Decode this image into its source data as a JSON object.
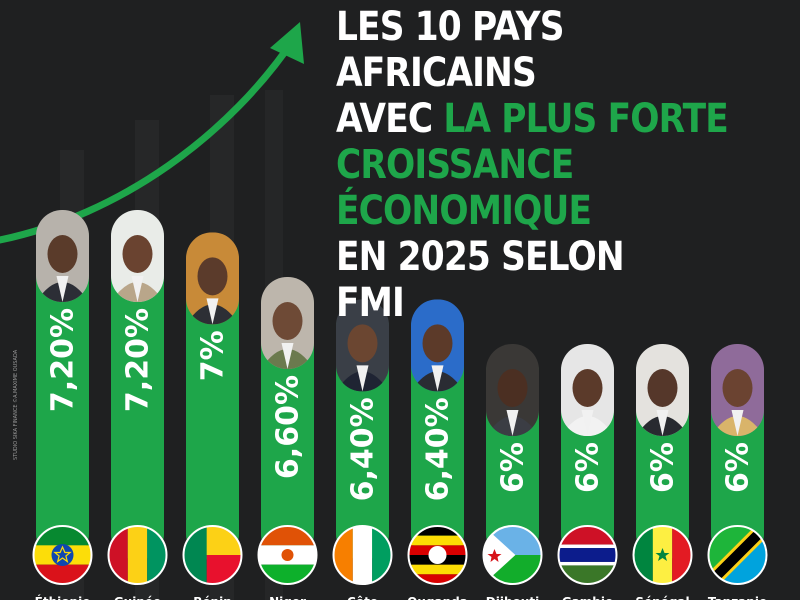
{
  "title": {
    "line1": "LES 10 PAYS AFRICAINS",
    "line2_white": "AVEC ",
    "line2_green": "LA PLUS FORTE",
    "line3": "CROISSANCE",
    "line4": "ÉCONOMIQUE",
    "line5": "EN 2025 SELON",
    "line6": "FMI"
  },
  "credit": "STUDIO SIKA FINANCE ©A.MAXIME OUSADA",
  "colors": {
    "background": "#1f2021",
    "accent": "#1ea64a",
    "bar": "#1ea64a",
    "text": "#ffffff"
  },
  "chart_data": {
    "type": "bar",
    "title": "LES 10 PAYS AFRICAINS AVEC LA PLUS FORTE CROISSANCE ÉCONOMIQUE EN 2025 SELON FMI",
    "categories": [
      "Éthiopie",
      "Guinée",
      "Bénin",
      "Niger",
      "Côte d'Ivoire",
      "Ouganda",
      "Djibouti",
      "Gambie",
      "Sénégal",
      "Tanzanie"
    ],
    "category_labels_visible": [
      "Éthiopie",
      "Guinée",
      "Bénin",
      "Niger",
      "Côte",
      "Ouganda",
      "Djibouti",
      "Gambie",
      "Sénégal",
      "Tanzanie"
    ],
    "values": [
      7.2,
      7.2,
      7.0,
      6.6,
      6.4,
      6.4,
      6.0,
      6.0,
      6.0,
      6.0
    ],
    "value_labels": [
      "7,20%",
      "7,20%",
      "7%",
      "6,60%",
      "6,40%",
      "6,40%",
      "6%",
      "6%",
      "6%",
      "6%"
    ],
    "flag_icons": [
      "ethiopia-flag-icon",
      "guinea-flag-icon",
      "benin-flag-icon",
      "niger-flag-icon",
      "ivory-coast-flag-icon",
      "uganda-flag-icon",
      "djibouti-flag-icon",
      "gambia-flag-icon",
      "senegal-flag-icon",
      "tanzania-flag-icon"
    ],
    "portrait_icons": [
      "leader-portrait-ethiopia",
      "leader-portrait-guinea",
      "leader-portrait-benin",
      "leader-portrait-niger",
      "leader-portrait-ivory-coast",
      "leader-portrait-uganda",
      "leader-portrait-djibouti",
      "leader-portrait-gambia",
      "leader-portrait-senegal",
      "leader-portrait-tanzania"
    ],
    "xlabel": "",
    "ylabel": "",
    "ylim": [
      0,
      7.2
    ],
    "grid": false,
    "legend": "none"
  }
}
